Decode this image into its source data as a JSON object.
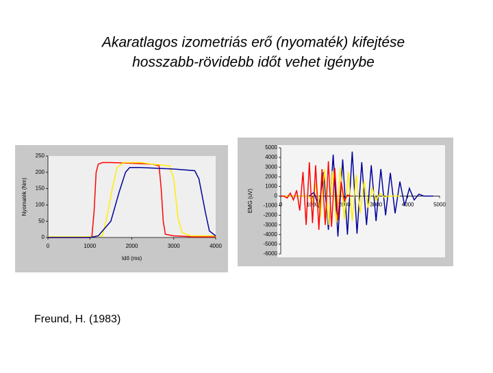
{
  "slide": {
    "title": [
      "Akaratlagos izometriás erő (nyomaték) kifejtése",
      "hosszabb-rövidebb időt vehet igénybe"
    ],
    "citation": "Freund, H. (1983)"
  },
  "chart_data": [
    {
      "type": "line",
      "xlabel": "Idő (ms)",
      "ylabel": "Nyomaték (Nm)",
      "xlim": [
        0,
        4000
      ],
      "xticks": [
        0,
        1000,
        2000,
        3000,
        4000
      ],
      "ylim": [
        0,
        250
      ],
      "yticks": [
        0,
        50,
        100,
        150,
        200,
        250
      ],
      "series": [
        {
          "color": "#ff0000",
          "x": [
            0,
            1000,
            1050,
            1100,
            1150,
            1200,
            1300,
            1500,
            2000,
            2500,
            2650,
            2700,
            2750,
            2800,
            3000,
            3500,
            4000
          ],
          "values": [
            0,
            0,
            5,
            80,
            200,
            225,
            230,
            230,
            228,
            225,
            220,
            150,
            50,
            10,
            5,
            2,
            2
          ]
        },
        {
          "color": "#ffee00",
          "x": [
            0,
            1000,
            1300,
            1400,
            1550,
            1650,
            1800,
            2200,
            2500,
            2900,
            3000,
            3100,
            3200,
            3400,
            4000
          ],
          "values": [
            2,
            2,
            5,
            60,
            160,
            215,
            230,
            230,
            225,
            220,
            180,
            60,
            15,
            5,
            5
          ]
        },
        {
          "color": "#000099",
          "x": [
            0,
            1000,
            1200,
            1500,
            1700,
            1850,
            1950,
            2200,
            3000,
            3500,
            3600,
            3750,
            3850,
            4000
          ],
          "values": [
            0,
            0,
            5,
            50,
            140,
            200,
            215,
            215,
            210,
            205,
            180,
            80,
            20,
            5
          ]
        }
      ]
    },
    {
      "type": "line",
      "ylabel": "EMG (uV)",
      "xlim": [
        0,
        5000
      ],
      "xticks": [
        0,
        1000,
        2000,
        3000,
        4000,
        5000
      ],
      "ylim": [
        -6000,
        5000
      ],
      "yticks": [
        -6000,
        -5000,
        -4000,
        -3000,
        -2000,
        -1000,
        0,
        1000,
        2000,
        3000,
        4000,
        5000
      ],
      "series": [
        {
          "color": "#000099",
          "x": [
            0,
            150,
            300,
            450,
            600,
            750,
            900,
            1050,
            1200,
            1350,
            1500,
            1650,
            1800,
            1950,
            2100,
            2250,
            2400,
            2550,
            2700,
            2850,
            3000,
            3150,
            3300,
            3450,
            3600,
            3750,
            3900,
            4050,
            4200,
            4350,
            4500,
            4650,
            4800
          ],
          "values": [
            0,
            0,
            0,
            0,
            0,
            0,
            0,
            400,
            -1200,
            2500,
            -3500,
            4300,
            -4200,
            3800,
            -4000,
            4600,
            -3900,
            3500,
            -3000,
            3200,
            -2600,
            2800,
            -2000,
            2400,
            -1800,
            1500,
            -1000,
            800,
            -400,
            200,
            0,
            0,
            0
          ]
        },
        {
          "color": "#ffee00",
          "x": [
            0,
            125,
            250,
            375,
            500,
            625,
            750,
            875,
            1000,
            1125,
            1250,
            1375,
            1500,
            1625,
            1750,
            1875,
            2000,
            2125,
            2250,
            2375,
            2500,
            2625,
            2750,
            2875,
            3000,
            3125,
            3250,
            3375,
            3500,
            3625,
            3750
          ],
          "values": [
            0,
            0,
            0,
            0,
            0,
            0,
            0,
            0,
            -600,
            1500,
            -2200,
            2800,
            -3000,
            2600,
            -2800,
            3000,
            -2400,
            2500,
            -2600,
            2200,
            -1800,
            1600,
            -1200,
            900,
            -500,
            300,
            -100,
            0,
            0,
            0,
            0
          ]
        },
        {
          "color": "#ff0000",
          "x": [
            0,
            100,
            200,
            300,
            400,
            500,
            600,
            700,
            800,
            900,
            1000,
            1100,
            1200,
            1300,
            1400,
            1500,
            1600,
            1700,
            1800,
            1900,
            2000,
            2100,
            2200
          ],
          "values": [
            0,
            0,
            -200,
            300,
            -400,
            600,
            -1500,
            2500,
            -3000,
            3500,
            -2800,
            3200,
            -3500,
            2800,
            -3000,
            3600,
            -3200,
            2900,
            -2500,
            1500,
            -500,
            100,
            0
          ]
        }
      ]
    }
  ]
}
